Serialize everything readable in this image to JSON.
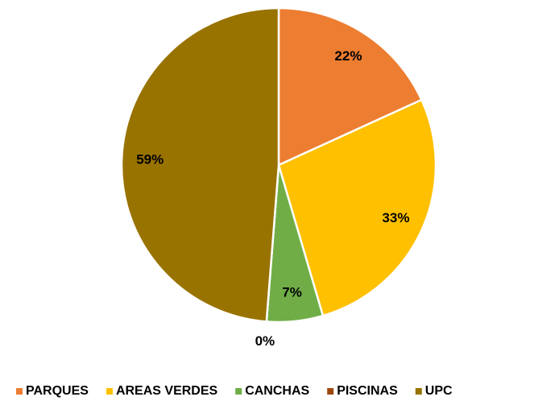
{
  "chart_data": {
    "type": "pie",
    "categories": [
      "PARQUES",
      "AREAS VERDES",
      "CANCHAS",
      "PISCINAS",
      "UPC"
    ],
    "values": [
      22,
      33,
      7,
      0,
      59
    ],
    "value_labels": [
      "22%",
      "33%",
      "7%",
      "0%",
      "59%"
    ],
    "colors": [
      "#ed7d31",
      "#ffc000",
      "#70ad47",
      "#9e480e",
      "#997300"
    ],
    "legend": "bottom"
  }
}
